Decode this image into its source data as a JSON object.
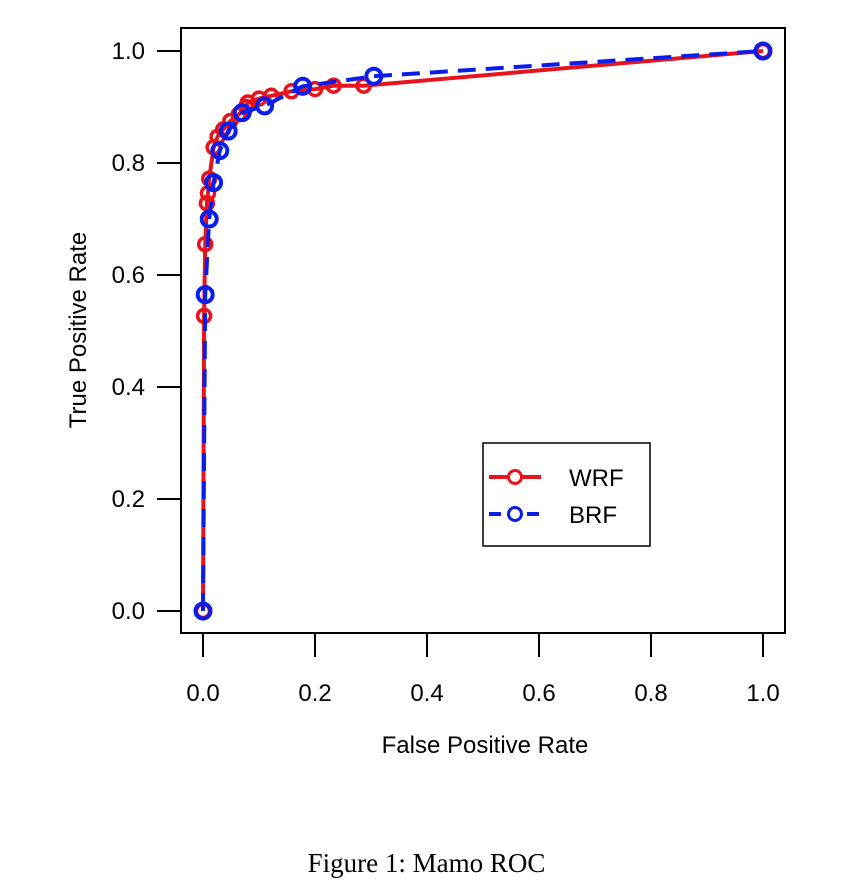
{
  "caption": "Figure 1: Mamo ROC",
  "chart_data": {
    "type": "line",
    "xlabel": "False Positive Rate",
    "ylabel": "True Positive Rate",
    "xlim": [
      0,
      1
    ],
    "ylim": [
      0,
      1
    ],
    "x_ticks": [
      "0.0",
      "0.2",
      "0.4",
      "0.6",
      "0.8",
      "1.0"
    ],
    "y_ticks": [
      "0.0",
      "0.2",
      "0.4",
      "0.6",
      "0.8",
      "1.0"
    ],
    "grid": false,
    "legend_position": "bottom-right",
    "series": [
      {
        "name": "WRF",
        "color": "#e8141c",
        "style": "solid",
        "marker": "open-circle",
        "points": [
          [
            0.0,
            0.0
          ],
          [
            0.002,
            0.527
          ],
          [
            0.004,
            0.655
          ],
          [
            0.007,
            0.728
          ],
          [
            0.009,
            0.746
          ],
          [
            0.011,
            0.772
          ],
          [
            0.019,
            0.828
          ],
          [
            0.026,
            0.847
          ],
          [
            0.036,
            0.86
          ],
          [
            0.049,
            0.875
          ],
          [
            0.064,
            0.887
          ],
          [
            0.077,
            0.9
          ],
          [
            0.08,
            0.908
          ],
          [
            0.1,
            0.915
          ],
          [
            0.122,
            0.92
          ],
          [
            0.158,
            0.928
          ],
          [
            0.2,
            0.932
          ],
          [
            0.233,
            0.938
          ],
          [
            0.287,
            0.938
          ],
          [
            1.0,
            1.0
          ]
        ]
      },
      {
        "name": "BRF",
        "color": "#0a1eea",
        "style": "dashed",
        "marker": "open-circle",
        "points": [
          [
            0.0,
            0.0
          ],
          [
            0.004,
            0.565
          ],
          [
            0.011,
            0.7
          ],
          [
            0.019,
            0.765
          ],
          [
            0.03,
            0.822
          ],
          [
            0.045,
            0.857
          ],
          [
            0.07,
            0.89
          ],
          [
            0.11,
            0.902
          ],
          [
            0.178,
            0.937
          ],
          [
            0.305,
            0.955
          ],
          [
            1.0,
            1.0
          ]
        ]
      }
    ]
  }
}
